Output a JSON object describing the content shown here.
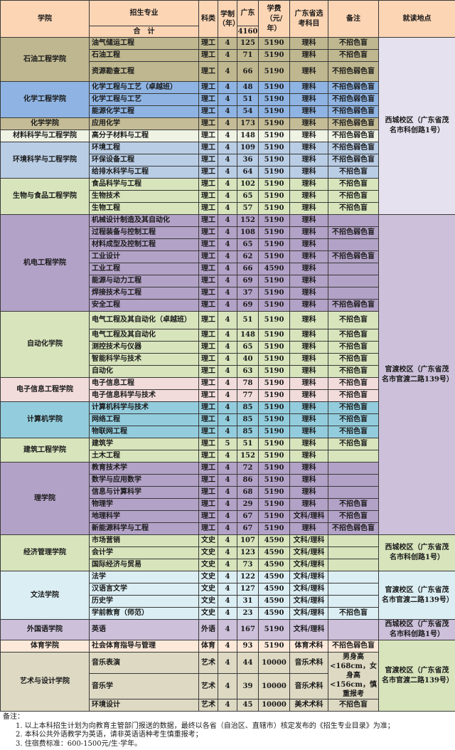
{
  "header": {
    "college": "学院",
    "major": "招生专业",
    "total_label": "合　计",
    "type": "科类",
    "years": "学制（年）",
    "gd": "广东",
    "gd_total": "4160",
    "fee": "学费（元/年）",
    "subject": "广东省选考科目",
    "note": "备注",
    "location": "就读地点"
  },
  "colors": {
    "header": "#fcd5b4",
    "border": "#3a3a3a"
  },
  "colleges": [
    {
      "name": "石油工程学院",
      "color": "#bfb78f",
      "campus": "西城校区（广东省茂名市科创路1号）",
      "campus_color": "#e6e1ee",
      "majors": [
        [
          "油气储运工程",
          "理工",
          "4",
          "125",
          "5190",
          "理科",
          "不招色盲"
        ],
        [
          "石油工程",
          "理工",
          "4",
          "71",
          "5190",
          "理科",
          "不招色盲"
        ],
        [
          "资源勘查工程",
          "理工",
          "4",
          "66",
          "5190",
          "理科",
          "不招色弱色盲"
        ]
      ]
    },
    {
      "name": "化学工程学院",
      "color": "#8fb4e3",
      "campus": "西城校区（广东省茂名市科创路1号）",
      "campus_color": "#e6e1ee",
      "majors": [
        [
          "化学工程与工艺（卓越班）",
          "理工",
          "4",
          "48",
          "5190",
          "理科",
          "不招色弱色盲"
        ],
        [
          "化学工程与工艺",
          "理工",
          "4",
          "51",
          "5190",
          "理科",
          "不招色弱色盲"
        ],
        [
          "能源化学工程",
          "理工",
          "4",
          "54",
          "5190",
          "理科",
          "不招色弱色盲"
        ]
      ]
    },
    {
      "name": "化学学院",
      "color": "#c4bc96",
      "campus": "西城校区（广东省茂名市科创路1号）",
      "campus_color": "#e6e1ee",
      "majors": [
        [
          "应用化学",
          "理工",
          "4",
          "173",
          "5190",
          "理科",
          "不招色弱色盲"
        ]
      ]
    },
    {
      "name": "材料科学与工程学院",
      "color": "#eef3e4",
      "campus": "西城校区（广东省茂名市科创路1号）",
      "campus_color": "#e6e1ee",
      "majors": [
        [
          "高分子材料与工程",
          "理工",
          "4",
          "148",
          "5190",
          "理科",
          "不招色弱色盲"
        ]
      ]
    },
    {
      "name": "环境科学与工程学院",
      "color": "#b9cde5",
      "campus": "西城校区（广东省茂名市科创路1号）",
      "campus_color": "#e6e1ee",
      "majors": [
        [
          "环境工程",
          "理工",
          "4",
          "109",
          "5190",
          "理科",
          "不招色弱色盲"
        ],
        [
          "环保设备工程",
          "理工",
          "4",
          "36",
          "5190",
          "理科",
          "不招色弱色盲"
        ],
        [
          "给排水科学与工程",
          "理工",
          "4",
          "64",
          "5190",
          "理科",
          "不招色盲"
        ]
      ]
    },
    {
      "name": "生物与食品工程学院",
      "color": "#d7e4bc",
      "campus": "西城校区（广东省茂名市科创路1号）",
      "campus_color": "#e6e1ee",
      "majors": [
        [
          "食品科学与工程",
          "理工",
          "4",
          "102",
          "5190",
          "理科",
          "不招色盲"
        ],
        [
          "生物技术",
          "理工",
          "4",
          "65",
          "5190",
          "理科",
          "不招色盲"
        ],
        [
          "生物工程",
          "理工",
          "4",
          "57",
          "5190",
          "理科",
          "不招色盲"
        ]
      ]
    },
    {
      "name": "机电工程学院",
      "color": "#b3a2c7",
      "campus": "官渡校区（广东省茂名市官渡二路139号）",
      "campus_color": "#ccc0da",
      "majors": [
        [
          "机械设计制造及其自动化",
          "理工",
          "4",
          "152",
          "5190",
          "理科",
          ""
        ],
        [
          "过程装备与控制工程",
          "理工",
          "4",
          "108",
          "5190",
          "理科",
          "不招色弱色盲"
        ],
        [
          "材料成型及控制工程",
          "理工",
          "4",
          "65",
          "5190",
          "理科",
          ""
        ],
        [
          "工业设计",
          "理工",
          "4",
          "62",
          "5190",
          "理科",
          "不招色弱色盲"
        ],
        [
          "工业工程",
          "理工",
          "4",
          "66",
          "4590",
          "理科",
          ""
        ],
        [
          "能源与动力工程",
          "理工",
          "4",
          "69",
          "5190",
          "理科",
          ""
        ],
        [
          "焊接技术与工程",
          "理工",
          "4",
          "37",
          "5190",
          "理科",
          ""
        ],
        [
          "安全工程",
          "理工",
          "4",
          "69",
          "5190",
          "理科",
          "不招色弱色盲"
        ]
      ]
    },
    {
      "name": "自动化学院",
      "color": "#d7e4bc",
      "campus": "官渡校区（广东省茂名市官渡二路139号）",
      "campus_color": "#ccc0da",
      "majors": [
        [
          "电气工程及其自动化（卓越班）",
          "理工",
          "4",
          "51",
          "5190",
          "理科",
          "不招色盲"
        ],
        [
          "电气工程及其自动化",
          "理工",
          "4",
          "148",
          "5190",
          "理科",
          "不招色盲"
        ],
        [
          "测控技术与仪器",
          "理工",
          "4",
          "65",
          "5190",
          "理科",
          "不招色盲"
        ],
        [
          "智能科学与技术",
          "理工",
          "4",
          "40",
          "5190",
          "理科",
          "不招色盲"
        ],
        [
          "自动化",
          "理工",
          "4",
          "63",
          "5190",
          "理科",
          "不招色盲"
        ]
      ]
    },
    {
      "name": "电子信息工程学院",
      "color": "#f2dcdb",
      "campus": "官渡校区（广东省茂名市官渡二路139号）",
      "campus_color": "#ccc0da",
      "majors": [
        [
          "电子信息工程",
          "理工",
          "4",
          "78",
          "5190",
          "理科",
          "不招色盲"
        ],
        [
          "电子信息科学与技术",
          "理工",
          "4",
          "77",
          "5190",
          "理科",
          "不招色盲"
        ]
      ]
    },
    {
      "name": "计算机学院",
      "color": "#93cddd",
      "campus": "官渡校区（广东省茂名市官渡二路139号）",
      "campus_color": "#ccc0da",
      "majors": [
        [
          "计算机科学与技术",
          "理工",
          "4",
          "85",
          "5190",
          "理科",
          "不招色盲"
        ],
        [
          "网络工程",
          "理工",
          "4",
          "85",
          "5190",
          "理科",
          "不招色盲"
        ],
        [
          "物联网工程",
          "理工",
          "4",
          "85",
          "5190",
          "理科",
          "不招色盲"
        ]
      ]
    },
    {
      "name": "建筑工程学院",
      "color": "#d7e4bc",
      "campus": "官渡校区（广东省茂名市官渡二路139号）",
      "campus_color": "#ccc0da",
      "majors": [
        [
          "建筑学",
          "理工",
          "5",
          "51",
          "5190",
          "理科",
          "不招色盲"
        ],
        [
          "土木工程",
          "理工",
          "4",
          "152",
          "5190",
          "理科",
          ""
        ]
      ]
    },
    {
      "name": "理学院",
      "color": "#b3a2c7",
      "campus": "官渡校区（广东省茂名市官渡二路139号）",
      "campus_color": "#ccc0da",
      "majors": [
        [
          "教育技术学",
          "理工",
          "4",
          "72",
          "5190",
          "理科",
          ""
        ],
        [
          "数学与应用数学",
          "理工",
          "4",
          "86",
          "5190",
          "理科",
          ""
        ],
        [
          "信息与计算科学",
          "理工",
          "4",
          "68",
          "5190",
          "理科",
          ""
        ],
        [
          "物理学",
          "理工",
          "4",
          "29",
          "5190",
          "理科",
          "不招色盲"
        ],
        [
          "地理科学",
          "理工",
          "4",
          "67",
          "5190",
          "文科/理科",
          "不招色盲"
        ],
        [
          "新能源科学与工程",
          "理工",
          "4",
          "67",
          "5190",
          "理科",
          "不招色弱色盲"
        ]
      ]
    },
    {
      "name": "经济管理学院",
      "color": "#d7e4bc",
      "campus": "西城校区（广东省茂名市科创路1号）",
      "campus_color": "#d7e4bc",
      "majors": [
        [
          "市场营销",
          "文史",
          "4",
          "107",
          "4590",
          "文科/理科",
          ""
        ],
        [
          "会计学",
          "文史",
          "4",
          "123",
          "4590",
          "文科/理科",
          ""
        ],
        [
          "国际经济与贸易",
          "文史",
          "4",
          "73",
          "4590",
          "文科/理科",
          ""
        ]
      ]
    },
    {
      "name": "文法学院",
      "color": "#dbeef3",
      "campus": "官渡校区（广东省茂名市官渡二路139号）",
      "campus_color": "#dbeef3",
      "majors": [
        [
          "法学",
          "文史",
          "4",
          "122",
          "4590",
          "文科/理科",
          ""
        ],
        [
          "汉语言文学",
          "文史",
          "4",
          "127",
          "4590",
          "文科/理科",
          ""
        ],
        [
          "历史学",
          "文史",
          "4",
          "31",
          "4590",
          "文科/理科",
          ""
        ],
        [
          "学前教育（师范）",
          "文史",
          "4",
          "23",
          "4590",
          "文科/理科",
          "不招色盲"
        ]
      ]
    },
    {
      "name": "外国语学院",
      "color": "#ccc0da",
      "campus": "西城校区（广东省茂名市科创路1号）",
      "campus_color": "#ccc0da",
      "majors": [
        [
          "英语",
          "外语",
          "4",
          "167",
          "5190",
          "文科/理科",
          ""
        ]
      ]
    },
    {
      "name": "体育学院",
      "color": "#fde9d9",
      "campus": "官渡校区（广东省茂名市官渡二路139号）",
      "campus_color": "#d7e4bc",
      "majors": [
        [
          "社会体育指导与管理",
          "体育",
          "4",
          "93",
          "5190",
          "体育术科",
          "不招色弱色盲"
        ]
      ]
    },
    {
      "name": "艺术与设计学院",
      "color": "#ddd9c3",
      "campus": "官渡校区（广东省茂名市官渡二路139号）",
      "campus_color": "#d7e4bc",
      "majors": [
        [
          "音乐表演",
          "艺术",
          "4",
          "44",
          "10000",
          "音乐术科",
          "男身高<168cm，女身高<156cm，慎重报考"
        ],
        [
          "音乐学",
          "艺术",
          "4",
          "39",
          "10000",
          "音乐术科",
          null
        ],
        [
          "环境设计",
          "艺术",
          "4",
          "45",
          "10000",
          "美术术科",
          "不招色盲"
        ]
      ]
    }
  ],
  "notes": {
    "title": "备注：",
    "items": [
      "1. 以上本科招生计划为向教育主管部门报送的数据，最终以各省（自治区、直辖市）核定发布的《招生专业目录》为准；",
      "2. 本科公共外语教学为英语，请非英语语种考生慎重报考；",
      "3. 住宿费标准：600-1500元/生·学年。"
    ]
  }
}
